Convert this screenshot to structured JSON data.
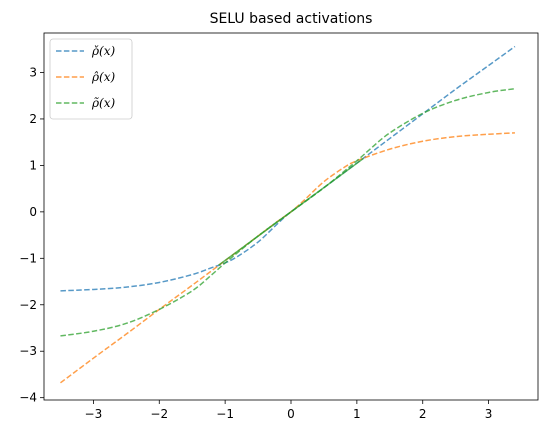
{
  "chart_data": {
    "type": "line",
    "title": "SELU based activations",
    "xlabel": "",
    "ylabel": "",
    "xlim": [
      -3.75,
      3.75
    ],
    "ylim": [
      -4.05,
      3.85
    ],
    "xticks": [
      -3,
      -2,
      -1,
      0,
      1,
      2,
      3
    ],
    "yticks": [
      -4,
      -3,
      -2,
      -1,
      0,
      1,
      2,
      3
    ],
    "xtick_labels": [
      "−3",
      "−2",
      "−1",
      "0",
      "1",
      "2",
      "3"
    ],
    "ytick_labels": [
      "−4",
      "−3",
      "−2",
      "−1",
      "0",
      "1",
      "2",
      "3"
    ],
    "grid": false,
    "legend_position": "upper-left",
    "series": [
      {
        "name": "ρ̌(x)",
        "color": "#1f77b4",
        "style": "dashed",
        "x": [
          -3.5,
          -3.0,
          -2.5,
          -2.0,
          -1.5,
          -1.2,
          -1.0,
          -0.8,
          -0.5,
          -0.2,
          0.0,
          0.5,
          1.0,
          1.5,
          2.0,
          2.5,
          3.0,
          3.4
        ],
        "y": [
          -1.7,
          -1.67,
          -1.62,
          -1.52,
          -1.35,
          -1.2,
          -1.1,
          -0.95,
          -0.65,
          -0.25,
          0.0,
          0.52,
          1.05,
          1.58,
          2.11,
          2.64,
          3.15,
          3.56
        ]
      },
      {
        "name": "ρ̂(x)",
        "color": "#ff7f0e",
        "style": "dashed",
        "x": [
          -3.5,
          -3.0,
          -2.5,
          -2.0,
          -1.5,
          -1.0,
          -0.5,
          -0.2,
          0.0,
          0.2,
          0.5,
          0.8,
          1.0,
          1.5,
          2.0,
          2.5,
          3.0,
          3.4
        ],
        "y": [
          -3.68,
          -3.15,
          -2.63,
          -2.1,
          -1.58,
          -1.05,
          -0.52,
          -0.2,
          0.0,
          0.25,
          0.65,
          0.95,
          1.1,
          1.35,
          1.52,
          1.62,
          1.67,
          1.7
        ]
      },
      {
        "name": "ρ̃(x)",
        "color": "#2ca02c",
        "style": "dashed",
        "x": [
          -3.5,
          -3.0,
          -2.5,
          -2.0,
          -1.5,
          -1.2,
          -1.0,
          -0.5,
          0.0,
          0.5,
          1.0,
          1.2,
          1.5,
          2.0,
          2.5,
          3.0,
          3.4
        ],
        "y": [
          -2.67,
          -2.57,
          -2.4,
          -2.1,
          -1.7,
          -1.35,
          -1.1,
          -0.52,
          0.0,
          0.52,
          1.1,
          1.35,
          1.7,
          2.12,
          2.4,
          2.57,
          2.65
        ]
      },
      {
        "name": "",
        "color": "#2ca02c",
        "style": "solid",
        "x": [
          -1.1,
          1.1
        ],
        "y": [
          -1.15,
          1.15
        ]
      }
    ]
  }
}
